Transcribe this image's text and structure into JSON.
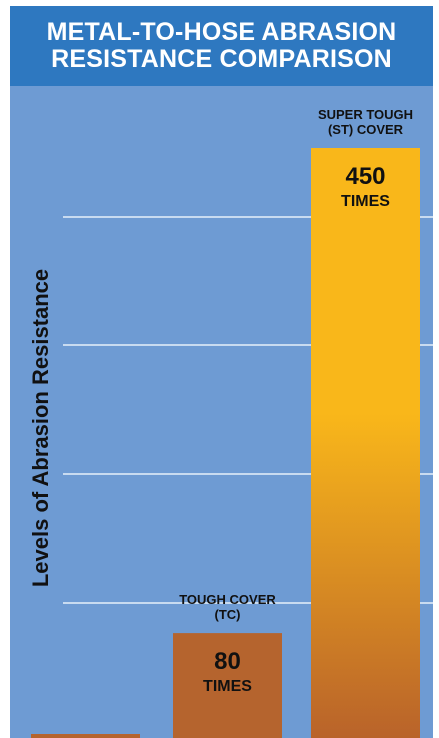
{
  "chart_data": {
    "type": "bar",
    "title_lines": [
      "METAL-TO-HOSE ABRASION",
      "RESISTANCE COMPARISON"
    ],
    "ylabel": "Levels of Abrasion Resistance",
    "xlabel": "",
    "grid": true,
    "ylim": [
      0,
      480
    ],
    "colors": {
      "title_background": "#2e78c0",
      "plot_background": "#6e9bd3",
      "gridline": "#c8dbf0",
      "tc_bar": "#b5642e",
      "st_bar_top": "#f9b71a",
      "st_bar_bottom": "#b9632a"
    },
    "bars": [
      {
        "key": "baseline",
        "value": 1,
        "label_lines": [],
        "value_text": "",
        "unit_text": ""
      },
      {
        "key": "tc",
        "value": 80,
        "label_lines": [
          "TOUGH COVER",
          "(TC)"
        ],
        "value_text": "80",
        "unit_text": "TIMES"
      },
      {
        "key": "st",
        "value": 450,
        "label_lines": [
          "SUPER TOUGH",
          "(ST) COVER"
        ],
        "value_text": "450",
        "unit_text": "TIMES"
      }
    ]
  }
}
